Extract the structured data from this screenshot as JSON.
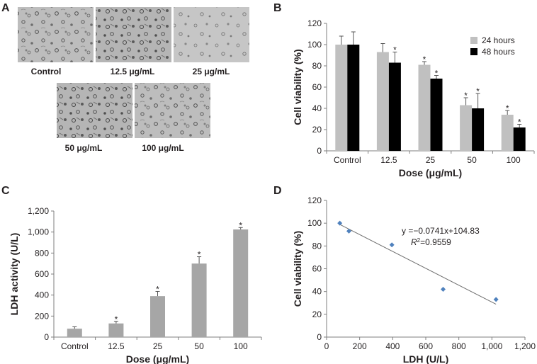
{
  "panels": {
    "a": {
      "letter": "A",
      "images": [
        {
          "caption": "Control"
        },
        {
          "caption": "12.5 μg/mL"
        },
        {
          "caption": "25 μg/mL"
        },
        {
          "caption": "50 μg/mL"
        },
        {
          "caption": "100 μg/mL"
        }
      ]
    },
    "b": {
      "letter": "B"
    },
    "c": {
      "letter": "C"
    },
    "d": {
      "letter": "D"
    }
  },
  "chart_data": [
    {
      "id": "B",
      "type": "bar",
      "ylabel": "Cell viability (%)",
      "xlabel": "Dose (μg/mL)",
      "categories": [
        "Control",
        "12.5",
        "25",
        "50",
        "100"
      ],
      "ylim": [
        0,
        120
      ],
      "yticks": [
        "0",
        "20",
        "40",
        "60",
        "80",
        "100",
        "120"
      ],
      "legend_position": "top-right",
      "series": [
        {
          "name": "24 hours",
          "color": "#c0c0c0",
          "values": [
            100,
            93,
            81,
            43,
            34
          ],
          "errors": [
            8,
            8,
            3,
            7,
            4
          ],
          "significant": [
            false,
            false,
            true,
            true,
            true
          ]
        },
        {
          "name": "48 hours",
          "color": "#000000",
          "values": [
            100,
            83,
            68,
            40,
            22
          ],
          "errors": [
            12,
            10,
            3,
            14,
            3
          ],
          "significant": [
            false,
            true,
            true,
            true,
            true
          ]
        }
      ],
      "significance_marker": "*"
    },
    {
      "id": "C",
      "type": "bar",
      "ylabel": "LDH activity (U/L)",
      "xlabel": "Dose (μg/mL)",
      "categories": [
        "Control",
        "12.5",
        "25",
        "50",
        "100"
      ],
      "ylim": [
        0,
        1200
      ],
      "yticks": [
        "0",
        "200",
        "400",
        "600",
        "800",
        "1,000",
        "1,200"
      ],
      "series": [
        {
          "color": "#a6a6a6",
          "values": [
            80,
            130,
            390,
            700,
            1025
          ],
          "errors": [
            18,
            20,
            45,
            65,
            18
          ],
          "significant": [
            false,
            true,
            true,
            true,
            true
          ]
        }
      ],
      "significance_marker": "*"
    },
    {
      "id": "D",
      "type": "scatter",
      "xlabel": "LDH (U/L)",
      "ylabel": "Cell viability (%)",
      "xlim": [
        0,
        1200
      ],
      "ylim": [
        0,
        120
      ],
      "xticks": [
        "0",
        "200",
        "400",
        "600",
        "800",
        "1,000",
        "1,200"
      ],
      "yticks": [
        "0",
        "20",
        "40",
        "60",
        "80",
        "100",
        "120"
      ],
      "marker_color": "#4f81bd",
      "points": [
        {
          "x": 80,
          "y": 100
        },
        {
          "x": 135,
          "y": 93
        },
        {
          "x": 395,
          "y": 81
        },
        {
          "x": 705,
          "y": 42
        },
        {
          "x": 1025,
          "y": 33
        }
      ],
      "trendline": {
        "slope": -0.0741,
        "intercept": 104.83,
        "x_range": [
          80,
          1025
        ],
        "color": "#6d6d6d"
      },
      "equation": "y =−0.0741x+104.83",
      "r2_label": "R",
      "r2_value": "=0.9559"
    }
  ]
}
